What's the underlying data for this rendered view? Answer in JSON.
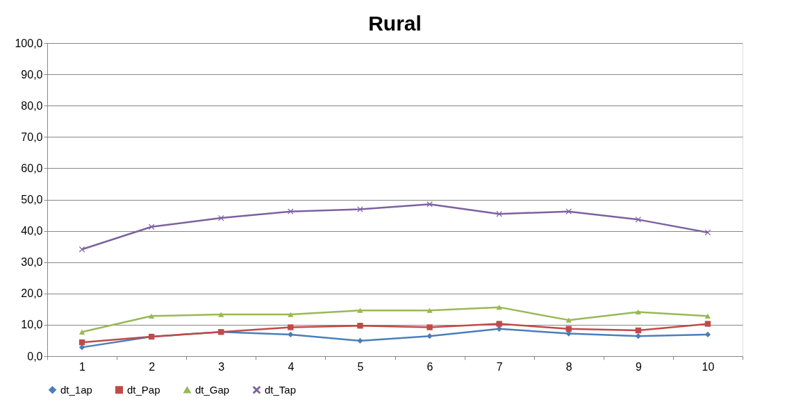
{
  "chart_data": {
    "type": "line",
    "title": "Rural",
    "categories": [
      "1",
      "2",
      "3",
      "4",
      "5",
      "6",
      "7",
      "8",
      "9",
      "10"
    ],
    "series": [
      {
        "name": "dt_1ap",
        "color": "#4a7ebb",
        "marker": "diamond",
        "values": [
          2.8,
          6.2,
          7.7,
          6.9,
          4.9,
          6.4,
          8.7,
          7.2,
          6.4,
          6.9
        ]
      },
      {
        "name": "dt_Pap",
        "color": "#be4b48",
        "marker": "square",
        "values": [
          4.4,
          6.2,
          7.7,
          9.2,
          9.7,
          9.2,
          10.3,
          8.7,
          8.2,
          10.3
        ]
      },
      {
        "name": "dt_Gap",
        "color": "#98b954",
        "marker": "triangle",
        "values": [
          7.7,
          12.8,
          13.3,
          13.3,
          14.6,
          14.6,
          15.6,
          11.5,
          14.1,
          12.8
        ]
      },
      {
        "name": "dt_Tap",
        "color": "#7d60a0",
        "marker": "cross",
        "values": [
          34.1,
          41.3,
          44.1,
          46.2,
          46.9,
          48.5,
          45.4,
          46.2,
          43.6,
          39.5
        ]
      }
    ],
    "ylim": [
      0,
      100
    ],
    "yticks": [
      {
        "value": 0,
        "label": "0,0"
      },
      {
        "value": 10,
        "label": "10,0"
      },
      {
        "value": 20,
        "label": "20,0"
      },
      {
        "value": 30,
        "label": "30,0"
      },
      {
        "value": 40,
        "label": "40,0"
      },
      {
        "value": 50,
        "label": "50,0"
      },
      {
        "value": 60,
        "label": "60,0"
      },
      {
        "value": 70,
        "label": "70,0"
      },
      {
        "value": 80,
        "label": "80,0"
      },
      {
        "value": 90,
        "label": "90,0"
      },
      {
        "value": 100,
        "label": "100,0"
      }
    ],
    "grid": "y",
    "legend": "bottom",
    "line_style": "solid"
  }
}
